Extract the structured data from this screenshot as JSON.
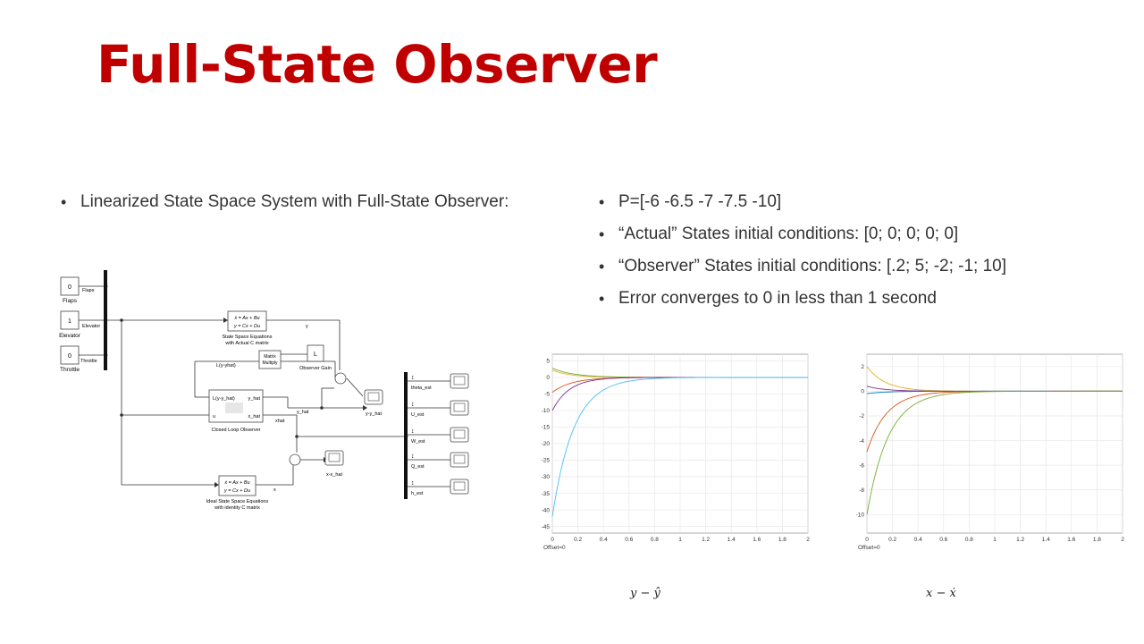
{
  "title": "Full-State Observer",
  "left_bullets": [
    "Linearized State Space System with Full-State Observer:"
  ],
  "right_bullets": [
    "P=[-6 -6.5 -7 -7.5 -10]",
    "“Actual” States initial conditions: [0; 0; 0; 0; 0]",
    "“Observer” States initial conditions:  [.2; 5; -2; -1; 10]",
    "Error converges to 0 in less than 1 second"
  ],
  "diagram": {
    "constants": [
      {
        "value": "0",
        "label": "Flaps",
        "port": "Flaps"
      },
      {
        "value": "1",
        "label": "Elevator",
        "port": "Elevator"
      },
      {
        "value": "0",
        "label": "Throttle",
        "port": "Throttle"
      }
    ],
    "ss_actual": {
      "eq1": "ẋ = Ax + Bu",
      "eq2": "y = Cx + Du",
      "caption1": "State Space Equations",
      "caption2": "with Actual C matrix"
    },
    "ss_ideal": {
      "eq1": "ẋ = Ax + Bu",
      "eq2": "y = Cx + Du",
      "caption1": "Ideal State Space Equations",
      "caption2": "with identity C matrix"
    },
    "gain": {
      "value": "L",
      "label": "Observer Gain"
    },
    "matrix": {
      "line1": "Matrix",
      "line2": "Multiply"
    },
    "observer": {
      "in1": "L(y-y_hat)",
      "in2": "u",
      "out1": "y_hat",
      "out2": "x_hat",
      "label": "Closed Loop Observer"
    },
    "signals": {
      "y": "y",
      "l_err": "L(y-yhat)",
      "y_hat": "y_hat",
      "xhat": "xhat",
      "x": "x"
    },
    "scopes": {
      "y_err": "y-y_hat",
      "x_err": "x-x_hat"
    },
    "out_scopes": [
      "theta_est",
      "U_est",
      "W_est",
      "Q_est",
      "h_est"
    ]
  },
  "chart_data": [
    {
      "type": "line",
      "title": "",
      "xlabel": "",
      "ylabel": "",
      "footer": "Offset=0",
      "xlim": [
        0,
        2
      ],
      "ylim": [
        -47,
        7
      ],
      "xticks": [
        "0",
        "0.2",
        "0.4",
        "0.6",
        "0.8",
        "1",
        "1.2",
        "1.4",
        "1.6",
        "1.8",
        "2"
      ],
      "yticks": [
        "5",
        "0",
        "-5",
        "-10",
        "-15",
        "-20",
        "-25",
        "-30",
        "-35",
        "-40",
        "-45"
      ],
      "grid": true,
      "series": [
        {
          "color": "#e0b020",
          "y0": 2.2,
          "rate": 7
        },
        {
          "color": "#77ac30",
          "y0": 2.8,
          "rate": 6
        },
        {
          "color": "#d95319",
          "y0": -4.5,
          "rate": 6.5
        },
        {
          "color": "#7e2f8e",
          "y0": -10,
          "rate": 7.5
        },
        {
          "color": "#4dbeee",
          "y0": -42,
          "rate": 6
        }
      ]
    },
    {
      "type": "line",
      "title": "",
      "xlabel": "",
      "ylabel": "",
      "footer": "Offset=0",
      "xlim": [
        0,
        2
      ],
      "ylim": [
        -11.5,
        3
      ],
      "xticks": [
        "0",
        "0.2",
        "0.4",
        "0.6",
        "0.8",
        "1",
        "1.2",
        "1.4",
        "1.6",
        "1.8",
        "2"
      ],
      "yticks": [
        "2",
        "0",
        "-2",
        "-4",
        "-6",
        "-8",
        "-10"
      ],
      "grid": true,
      "series": [
        {
          "color": "#e0b020",
          "y0": 2.0,
          "rate": 7
        },
        {
          "color": "#7e2f8e",
          "y0": 0.4,
          "rate": 7
        },
        {
          "color": "#0072bd",
          "y0": -0.2,
          "rate": 7
        },
        {
          "color": "#d95319",
          "y0": -4.9,
          "rate": 6.5
        },
        {
          "color": "#77ac30",
          "y0": -10,
          "rate": 6
        }
      ]
    }
  ],
  "captions": {
    "y": "y  − ŷ",
    "x": "x  − ẋ"
  }
}
